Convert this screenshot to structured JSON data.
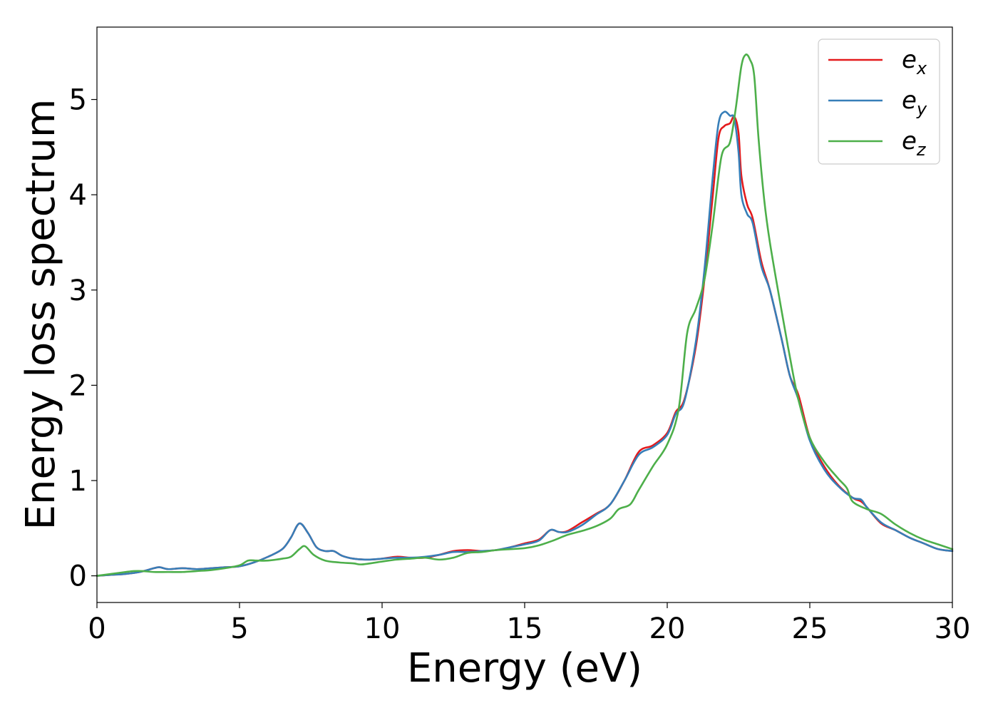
{
  "chart_data": {
    "type": "line",
    "title": "",
    "xlabel": "Energy (eV)",
    "ylabel": "Energy loss spectrum",
    "xlim": [
      0,
      30
    ],
    "ylim": [
      -0.28,
      5.76
    ],
    "xticks": [
      0,
      5,
      10,
      15,
      20,
      25,
      30
    ],
    "xtick_labels": [
      "0",
      "5",
      "10",
      "15",
      "20",
      "25",
      "30"
    ],
    "yticks": [
      0,
      1,
      2,
      3,
      4,
      5
    ],
    "ytick_labels": [
      "0",
      "1",
      "2",
      "3",
      "4",
      "5"
    ],
    "grid": false,
    "legend_position": "top-right",
    "series": [
      {
        "name": "e_x",
        "base": "e",
        "sub": "x",
        "color": "#e41a1c",
        "points": [
          [
            0,
            0
          ],
          [
            0.5,
            0.01
          ],
          [
            1,
            0.02
          ],
          [
            1.5,
            0.04
          ],
          [
            2,
            0.08
          ],
          [
            2.2,
            0.09
          ],
          [
            2.5,
            0.07
          ],
          [
            3,
            0.08
          ],
          [
            3.5,
            0.07
          ],
          [
            4,
            0.08
          ],
          [
            4.5,
            0.09
          ],
          [
            5,
            0.1
          ],
          [
            5.5,
            0.14
          ],
          [
            6,
            0.2
          ],
          [
            6.5,
            0.28
          ],
          [
            6.8,
            0.4
          ],
          [
            7.1,
            0.55
          ],
          [
            7.4,
            0.45
          ],
          [
            7.7,
            0.3
          ],
          [
            8,
            0.26
          ],
          [
            8.3,
            0.26
          ],
          [
            8.6,
            0.21
          ],
          [
            9,
            0.18
          ],
          [
            9.5,
            0.17
          ],
          [
            10,
            0.18
          ],
          [
            10.5,
            0.2
          ],
          [
            11,
            0.19
          ],
          [
            11.5,
            0.19
          ],
          [
            12,
            0.22
          ],
          [
            12.5,
            0.26
          ],
          [
            13,
            0.27
          ],
          [
            13.5,
            0.26
          ],
          [
            14,
            0.27
          ],
          [
            14.5,
            0.3
          ],
          [
            15,
            0.34
          ],
          [
            15.5,
            0.38
          ],
          [
            15.9,
            0.48
          ],
          [
            16.2,
            0.46
          ],
          [
            16.5,
            0.47
          ],
          [
            17,
            0.56
          ],
          [
            17.5,
            0.65
          ],
          [
            18,
            0.75
          ],
          [
            18.5,
            1.0
          ],
          [
            19,
            1.3
          ],
          [
            19.5,
            1.37
          ],
          [
            20,
            1.5
          ],
          [
            20.3,
            1.72
          ],
          [
            20.6,
            1.85
          ],
          [
            21,
            2.4
          ],
          [
            21.3,
            3.1
          ],
          [
            21.6,
            4.0
          ],
          [
            21.8,
            4.6
          ],
          [
            22,
            4.72
          ],
          [
            22.2,
            4.75
          ],
          [
            22.35,
            4.82
          ],
          [
            22.5,
            4.65
          ],
          [
            22.6,
            4.2
          ],
          [
            22.8,
            3.9
          ],
          [
            23,
            3.75
          ],
          [
            23.3,
            3.3
          ],
          [
            23.6,
            3.0
          ],
          [
            24,
            2.5
          ],
          [
            24.3,
            2.1
          ],
          [
            24.6,
            1.9
          ],
          [
            25,
            1.45
          ],
          [
            25.5,
            1.15
          ],
          [
            26,
            0.95
          ],
          [
            26.5,
            0.82
          ],
          [
            26.8,
            0.78
          ],
          [
            27,
            0.72
          ],
          [
            27.5,
            0.55
          ],
          [
            28,
            0.48
          ],
          [
            28.5,
            0.4
          ],
          [
            29,
            0.34
          ],
          [
            29.5,
            0.28
          ],
          [
            30,
            0.26
          ]
        ]
      },
      {
        "name": "e_y",
        "base": "e",
        "sub": "y",
        "color": "#377eb8",
        "points": [
          [
            0,
            0
          ],
          [
            0.5,
            0.01
          ],
          [
            1,
            0.02
          ],
          [
            1.5,
            0.04
          ],
          [
            2,
            0.08
          ],
          [
            2.2,
            0.09
          ],
          [
            2.5,
            0.07
          ],
          [
            3,
            0.08
          ],
          [
            3.5,
            0.07
          ],
          [
            4,
            0.08
          ],
          [
            4.5,
            0.09
          ],
          [
            5,
            0.1
          ],
          [
            5.5,
            0.14
          ],
          [
            6,
            0.2
          ],
          [
            6.5,
            0.28
          ],
          [
            6.8,
            0.4
          ],
          [
            7.1,
            0.55
          ],
          [
            7.4,
            0.45
          ],
          [
            7.7,
            0.3
          ],
          [
            8,
            0.26
          ],
          [
            8.3,
            0.26
          ],
          [
            8.6,
            0.21
          ],
          [
            9,
            0.18
          ],
          [
            9.5,
            0.17
          ],
          [
            10,
            0.18
          ],
          [
            10.5,
            0.19
          ],
          [
            11,
            0.19
          ],
          [
            11.5,
            0.2
          ],
          [
            12,
            0.22
          ],
          [
            12.5,
            0.25
          ],
          [
            13,
            0.25
          ],
          [
            13.5,
            0.26
          ],
          [
            14,
            0.27
          ],
          [
            14.5,
            0.3
          ],
          [
            15,
            0.33
          ],
          [
            15.5,
            0.37
          ],
          [
            15.9,
            0.48
          ],
          [
            16.2,
            0.46
          ],
          [
            16.5,
            0.46
          ],
          [
            17,
            0.53
          ],
          [
            17.5,
            0.64
          ],
          [
            18,
            0.75
          ],
          [
            18.5,
            1.0
          ],
          [
            19,
            1.27
          ],
          [
            19.5,
            1.35
          ],
          [
            20,
            1.48
          ],
          [
            20.3,
            1.7
          ],
          [
            20.6,
            1.83
          ],
          [
            21,
            2.45
          ],
          [
            21.3,
            3.2
          ],
          [
            21.6,
            4.2
          ],
          [
            21.8,
            4.75
          ],
          [
            22,
            4.87
          ],
          [
            22.2,
            4.83
          ],
          [
            22.35,
            4.8
          ],
          [
            22.5,
            4.45
          ],
          [
            22.6,
            4.0
          ],
          [
            22.8,
            3.8
          ],
          [
            23,
            3.7
          ],
          [
            23.3,
            3.25
          ],
          [
            23.6,
            3.0
          ],
          [
            24,
            2.5
          ],
          [
            24.3,
            2.1
          ],
          [
            24.6,
            1.85
          ],
          [
            25,
            1.42
          ],
          [
            25.5,
            1.12
          ],
          [
            26,
            0.94
          ],
          [
            26.5,
            0.82
          ],
          [
            26.8,
            0.8
          ],
          [
            27,
            0.72
          ],
          [
            27.5,
            0.56
          ],
          [
            28,
            0.48
          ],
          [
            28.5,
            0.4
          ],
          [
            29,
            0.34
          ],
          [
            29.5,
            0.28
          ],
          [
            30,
            0.26
          ]
        ]
      },
      {
        "name": "e_z",
        "base": "e",
        "sub": "z",
        "color": "#4daf4a",
        "points": [
          [
            0,
            0
          ],
          [
            0.5,
            0.02
          ],
          [
            1,
            0.04
          ],
          [
            1.3,
            0.05
          ],
          [
            1.6,
            0.05
          ],
          [
            2,
            0.04
          ],
          [
            2.5,
            0.04
          ],
          [
            3,
            0.04
          ],
          [
            3.5,
            0.05
          ],
          [
            4,
            0.06
          ],
          [
            4.5,
            0.08
          ],
          [
            5,
            0.11
          ],
          [
            5.3,
            0.16
          ],
          [
            5.6,
            0.16
          ],
          [
            6,
            0.16
          ],
          [
            6.5,
            0.18
          ],
          [
            6.8,
            0.2
          ],
          [
            7.1,
            0.28
          ],
          [
            7.3,
            0.31
          ],
          [
            7.6,
            0.22
          ],
          [
            8,
            0.16
          ],
          [
            8.5,
            0.14
          ],
          [
            9,
            0.13
          ],
          [
            9.3,
            0.12
          ],
          [
            10,
            0.15
          ],
          [
            10.5,
            0.17
          ],
          [
            11,
            0.18
          ],
          [
            11.5,
            0.19
          ],
          [
            12,
            0.17
          ],
          [
            12.5,
            0.19
          ],
          [
            13,
            0.24
          ],
          [
            13.5,
            0.25
          ],
          [
            14,
            0.27
          ],
          [
            14.5,
            0.28
          ],
          [
            15,
            0.29
          ],
          [
            15.5,
            0.32
          ],
          [
            16,
            0.37
          ],
          [
            16.5,
            0.43
          ],
          [
            17,
            0.47
          ],
          [
            17.5,
            0.52
          ],
          [
            18,
            0.6
          ],
          [
            18.3,
            0.7
          ],
          [
            18.7,
            0.75
          ],
          [
            19,
            0.9
          ],
          [
            19.5,
            1.15
          ],
          [
            20,
            1.38
          ],
          [
            20.4,
            1.75
          ],
          [
            20.7,
            2.55
          ],
          [
            21,
            2.8
          ],
          [
            21.3,
            3.1
          ],
          [
            21.6,
            3.7
          ],
          [
            21.9,
            4.4
          ],
          [
            22.2,
            4.55
          ],
          [
            22.4,
            4.9
          ],
          [
            22.6,
            5.35
          ],
          [
            22.75,
            5.47
          ],
          [
            22.9,
            5.42
          ],
          [
            23.05,
            5.25
          ],
          [
            23.2,
            4.6
          ],
          [
            23.4,
            3.95
          ],
          [
            23.6,
            3.5
          ],
          [
            24,
            2.8
          ],
          [
            24.3,
            2.3
          ],
          [
            24.6,
            1.85
          ],
          [
            25,
            1.45
          ],
          [
            25.5,
            1.2
          ],
          [
            26,
            1.02
          ],
          [
            26.3,
            0.92
          ],
          [
            26.5,
            0.78
          ],
          [
            27,
            0.7
          ],
          [
            27.5,
            0.65
          ],
          [
            28,
            0.54
          ],
          [
            28.5,
            0.45
          ],
          [
            29,
            0.38
          ],
          [
            29.5,
            0.33
          ],
          [
            30,
            0.28
          ]
        ]
      }
    ]
  }
}
